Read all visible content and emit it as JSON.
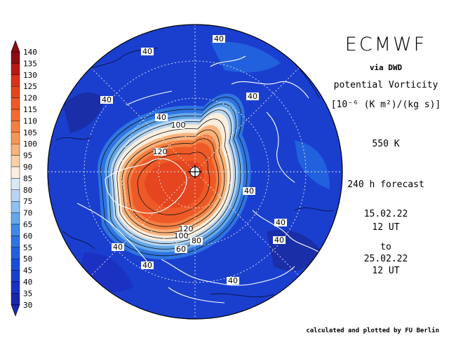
{
  "header": {
    "title": "ECMWF",
    "source": "via DWD",
    "variable": "potential Vorticity",
    "unit": "[10⁻⁶ (K m²)/(kg s)]",
    "level": "550 K",
    "forecast": "240 h forecast",
    "init_date": "15.02.22",
    "init_time": "12 UT",
    "to_label": "to",
    "valid_date": "25.02.22",
    "valid_time": "12 UT"
  },
  "footer": {
    "credit": "calculated and plotted by FU Berlin"
  },
  "colorbar": {
    "labels": [
      "140",
      "135",
      "130",
      "125",
      "120",
      "115",
      "110",
      "105",
      "100",
      "95",
      "90",
      "85",
      "80",
      "75",
      "70",
      "65",
      "60",
      "55",
      "50",
      "45",
      "40",
      "35",
      "30"
    ],
    "colors": [
      "#8e0b10",
      "#b51a14",
      "#d8321a",
      "#e5451f",
      "#ee5a27",
      "#f26b32",
      "#f47f42",
      "#f69656",
      "#f8b27a",
      "#fad0a6",
      "#fceedd",
      "#dbeaf7",
      "#b8d6f2",
      "#8fc1ee",
      "#64a7ea",
      "#3e8ae6",
      "#2f74e2",
      "#2161de",
      "#1a4ed9",
      "#1a3fcf",
      "#1b31c2",
      "#1a26ad"
    ]
  },
  "map": {
    "projection": "north-polar-stereographic",
    "field": "potential vorticity",
    "contour_labels": [
      "40",
      "40",
      "40",
      "40",
      "40",
      "40",
      "40",
      "40",
      "40",
      "40",
      "40",
      "100",
      "120",
      "120",
      "100",
      "80",
      "60"
    ]
  }
}
